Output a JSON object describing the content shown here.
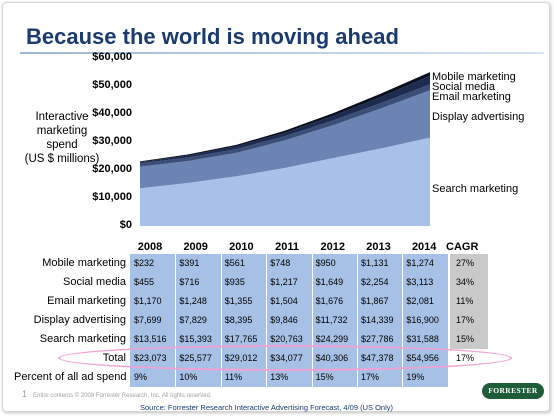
{
  "slide": {
    "title": "Because the world is moving ahead",
    "slide_number": "1",
    "copyright": "Entire contents © 2009  Forrester Research, Inc. All rights reserved.",
    "source": "Source: Forrester Research Interactive Advertising Forecast, 4/09 (US Only)",
    "logo_text": "FORRESTER"
  },
  "chart_data": {
    "type": "area",
    "stacked": true,
    "ylabel_lines": [
      "Interactive",
      "marketing",
      "spend",
      "(US $ millions)"
    ],
    "xlabel": "",
    "ylim": [
      0,
      60000
    ],
    "y_ticks": [
      "$0",
      "$10,000",
      "$20,000",
      "$30,000",
      "$40,000",
      "$50,000",
      "$60,000"
    ],
    "x": [
      "2008",
      "2009",
      "2010",
      "2011",
      "2012",
      "2013",
      "2014"
    ],
    "series": [
      {
        "name": "Search marketing",
        "values": [
          13516,
          15393,
          17765,
          20763,
          24299,
          27786,
          31588
        ],
        "color": "#a9c1e9"
      },
      {
        "name": "Display advertising",
        "values": [
          7699,
          7829,
          8395,
          9846,
          11732,
          14339,
          16900
        ],
        "color": "#6b84b4"
      },
      {
        "name": "Email marketing",
        "values": [
          1170,
          1248,
          1355,
          1504,
          1676,
          1867,
          2081
        ],
        "color": "#3a4e77"
      },
      {
        "name": "Social media",
        "values": [
          455,
          716,
          935,
          1217,
          1649,
          2254,
          3113
        ],
        "color": "#1c2b4f"
      },
      {
        "name": "Mobile marketing",
        "values": [
          232,
          391,
          561,
          748,
          950,
          1131,
          1274
        ],
        "color": "#0a0f1e"
      }
    ],
    "legend_placement": "right, inline labels",
    "grid": false
  },
  "table": {
    "cagr_header": "CAGR",
    "rows": [
      {
        "label": "Mobile marketing",
        "values": [
          "$232",
          "$391",
          "$561",
          "$748",
          "$950",
          "$1,131",
          "$1,274"
        ],
        "cagr": "27%"
      },
      {
        "label": "Social media",
        "values": [
          "$455",
          "$716",
          "$935",
          "$1,217",
          "$1,649",
          "$2,254",
          "$3,113"
        ],
        "cagr": "34%"
      },
      {
        "label": "Email marketing",
        "values": [
          "$1,170",
          "$1,248",
          "$1,355",
          "$1,504",
          "$1,676",
          "$1,867",
          "$2,081"
        ],
        "cagr": "11%"
      },
      {
        "label": "Display advertising",
        "values": [
          "$7,699",
          "$7,829",
          "$8,395",
          "$9,846",
          "$11,732",
          "$14,339",
          "$16,900"
        ],
        "cagr": "17%"
      },
      {
        "label": "Search marketing",
        "values": [
          "$13,516",
          "$15,393",
          "$17,765",
          "$20,763",
          "$24,299",
          "$27,786",
          "$31,588"
        ],
        "cagr": "15%"
      }
    ],
    "total": {
      "label": "Total",
      "values": [
        "$23,073",
        "$25,577",
        "$29,012",
        "$34,077",
        "$40,306",
        "$47,378",
        "$54,956"
      ],
      "cagr": "17%"
    },
    "percent": {
      "label": "Percent of all ad spend",
      "values": [
        "9%",
        "10%",
        "11%",
        "13%",
        "15%",
        "17%",
        "19%"
      ]
    }
  }
}
